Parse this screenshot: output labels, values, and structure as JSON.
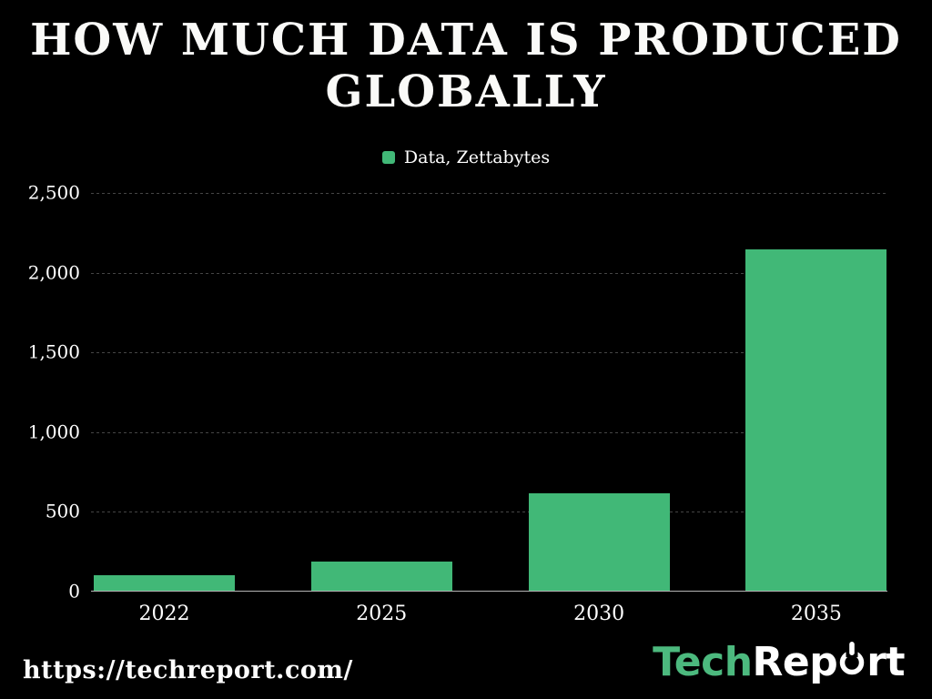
{
  "title": {
    "line1": "HOW MUCH DATA IS PRODUCED",
    "line2": "GLOBALLY"
  },
  "legend": {
    "label": "Data, Zettabytes"
  },
  "chart_data": {
    "type": "bar",
    "title": "HOW MUCH DATA IS PRODUCED GLOBALLY",
    "series_name": "Data, Zettabytes",
    "categories": [
      "2022",
      "2025",
      "2030",
      "2035"
    ],
    "values": [
      97,
      181,
      612,
      2142
    ],
    "unit": "Zettabytes",
    "xlabel": "",
    "ylabel": "",
    "ylim": [
      0,
      2500
    ],
    "yticks": [
      0,
      500,
      1000,
      1500,
      2000,
      2500
    ],
    "ytick_labels": [
      "0",
      "500",
      "1,000",
      "1,500",
      "2,000",
      "2,500"
    ],
    "grid": true,
    "legend_position": "top-center",
    "bar_color": "#41b877",
    "background_color": "#000000",
    "text_color": "#ffffff"
  },
  "footer": {
    "url": "https://techreport.com/",
    "logo": {
      "green_text": "Tech",
      "white_text_before_icon": "Rep",
      "white_text_after_icon": "rt",
      "icon": "power-icon",
      "green_color": "#4cb97e"
    }
  }
}
